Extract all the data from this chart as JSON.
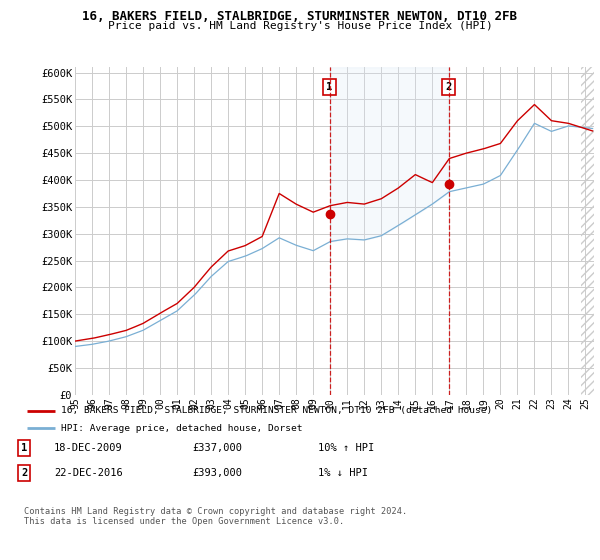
{
  "title": "16, BAKERS FIELD, STALBRIDGE, STURMINSTER NEWTON, DT10 2FB",
  "subtitle": "Price paid vs. HM Land Registry's House Price Index (HPI)",
  "ylabel_ticks": [
    "£0",
    "£50K",
    "£100K",
    "£150K",
    "£200K",
    "£250K",
    "£300K",
    "£350K",
    "£400K",
    "£450K",
    "£500K",
    "£550K",
    "£600K"
  ],
  "ytick_values": [
    0,
    50000,
    100000,
    150000,
    200000,
    250000,
    300000,
    350000,
    400000,
    450000,
    500000,
    550000,
    600000
  ],
  "ylim": [
    0,
    610000
  ],
  "xlim_start": 1995.0,
  "xlim_end": 2025.5,
  "xtick_years": [
    1995,
    1996,
    1997,
    1998,
    1999,
    2000,
    2001,
    2002,
    2003,
    2004,
    2005,
    2006,
    2007,
    2008,
    2009,
    2010,
    2011,
    2012,
    2013,
    2014,
    2015,
    2016,
    2017,
    2018,
    2019,
    2020,
    2021,
    2022,
    2023,
    2024,
    2025
  ],
  "red_line_color": "#cc0000",
  "blue_line_color": "#7aafd4",
  "blue_fill_color": "#dae8f5",
  "hatch_fill_color": "#eeeeee",
  "marker1_x": 2009.96,
  "marker1_y": 337000,
  "marker2_x": 2016.96,
  "marker2_y": 393000,
  "vline1_x": 2009.96,
  "vline2_x": 2016.96,
  "hatch_start_x": 2024.75,
  "legend_red_label": "16, BAKERS FIELD, STALBRIDGE, STURMINSTER NEWTON, DT10 2FB (detached house)",
  "legend_blue_label": "HPI: Average price, detached house, Dorset",
  "footer": "Contains HM Land Registry data © Crown copyright and database right 2024.\nThis data is licensed under the Open Government Licence v3.0.",
  "bg_color": "#ffffff",
  "grid_color": "#cccccc"
}
